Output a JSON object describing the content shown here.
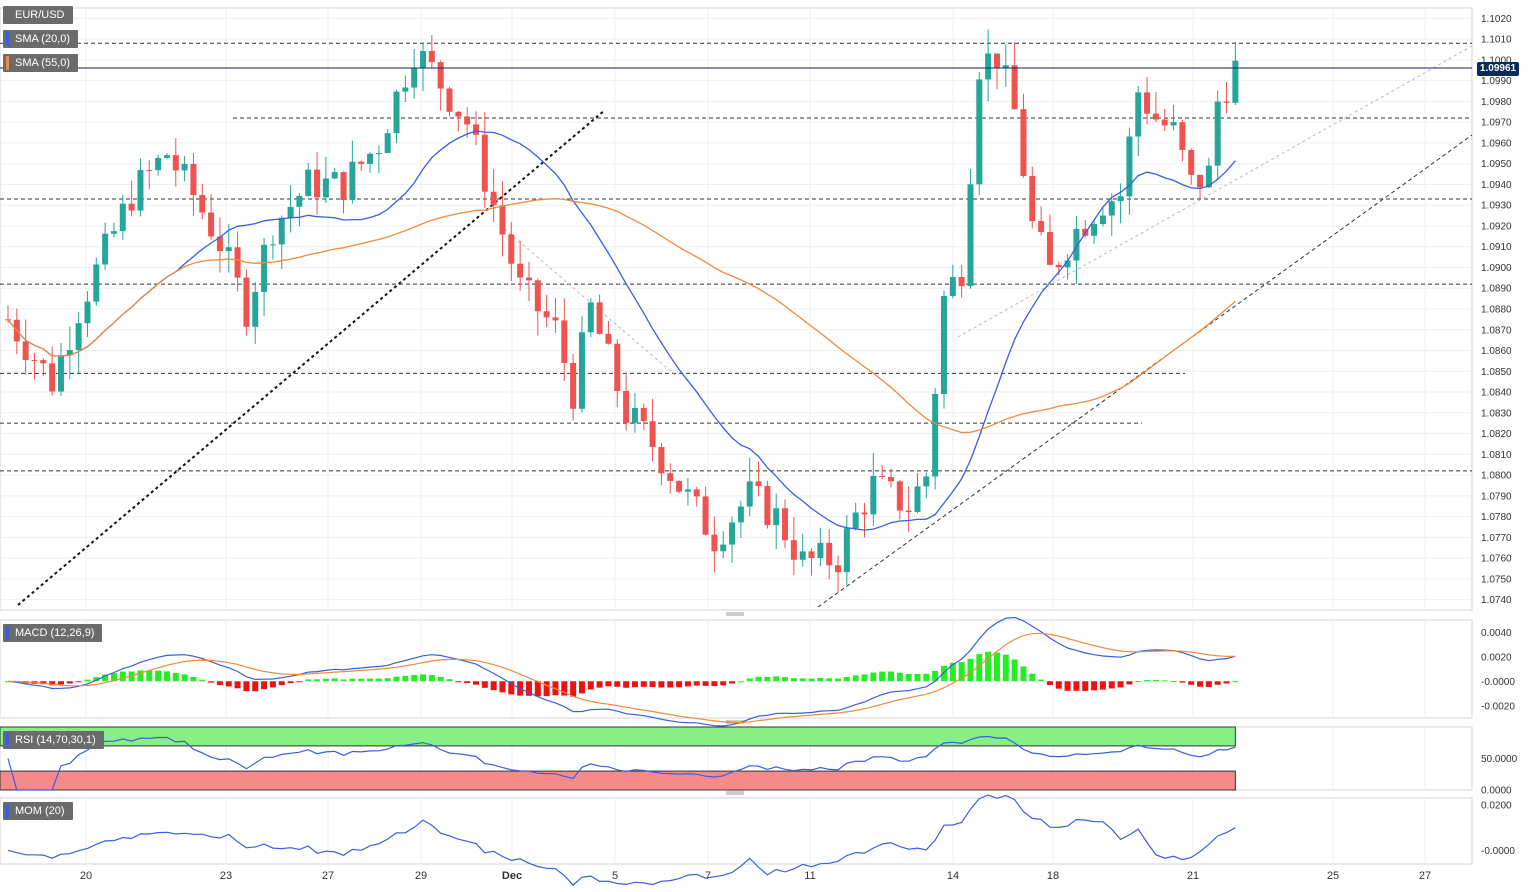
{
  "chart_data": {
    "type": "candlestick",
    "symbol": "EUR/USD",
    "last_price": "1.09961",
    "x_ticks": [
      "20",
      "23",
      "27",
      "29",
      "Dec",
      "5",
      "7",
      "11",
      "14",
      "18",
      "21",
      "25",
      "27"
    ],
    "price_axis": {
      "ticks": [
        "1.1020",
        "1.1010",
        "1.1000",
        "1.0990",
        "1.0980",
        "1.0970",
        "1.0960",
        "1.0950",
        "1.0940",
        "1.0930",
        "1.0920",
        "1.0910",
        "1.0900",
        "1.0890",
        "1.0880",
        "1.0870",
        "1.0860",
        "1.0850",
        "1.0840",
        "1.0830",
        "1.0820",
        "1.0810",
        "1.0800",
        "1.0790",
        "1.0780",
        "1.0770",
        "1.0760",
        "1.0750",
        "1.0740"
      ],
      "range": [
        1.0735,
        1.1025
      ]
    },
    "horizontal_levels": [
      1.1008,
      1.0972,
      1.0933,
      1.0892,
      1.0849,
      1.0825,
      1.0802
    ],
    "indicators": {
      "sma20_label": "SMA (20,0)",
      "sma55_label": "SMA (55,0)",
      "macd_label": "MACD (12,26,9)",
      "macd_ticks": [
        "0.0040",
        "0.0020",
        "-0.0000",
        "-0.0020"
      ],
      "rsi_label": "RSI (14,70,30,1)",
      "rsi_ticks": [
        "50.0000",
        "0.0000"
      ],
      "mom_label": "MOM (20)",
      "mom_ticks": [
        "0.0200",
        "-0.0000"
      ]
    },
    "colors": {
      "up": "#26a69a",
      "down": "#ef5350",
      "sma20": "#3a5ee0",
      "sma55": "#f08a3c",
      "macd_hist_pos": "#22ee22",
      "macd_hist_neg": "#ee1111",
      "rsi_zone_high": "#86f086",
      "rsi_zone_low": "#f68a8a",
      "price_line": "#0b2a5c"
    }
  }
}
